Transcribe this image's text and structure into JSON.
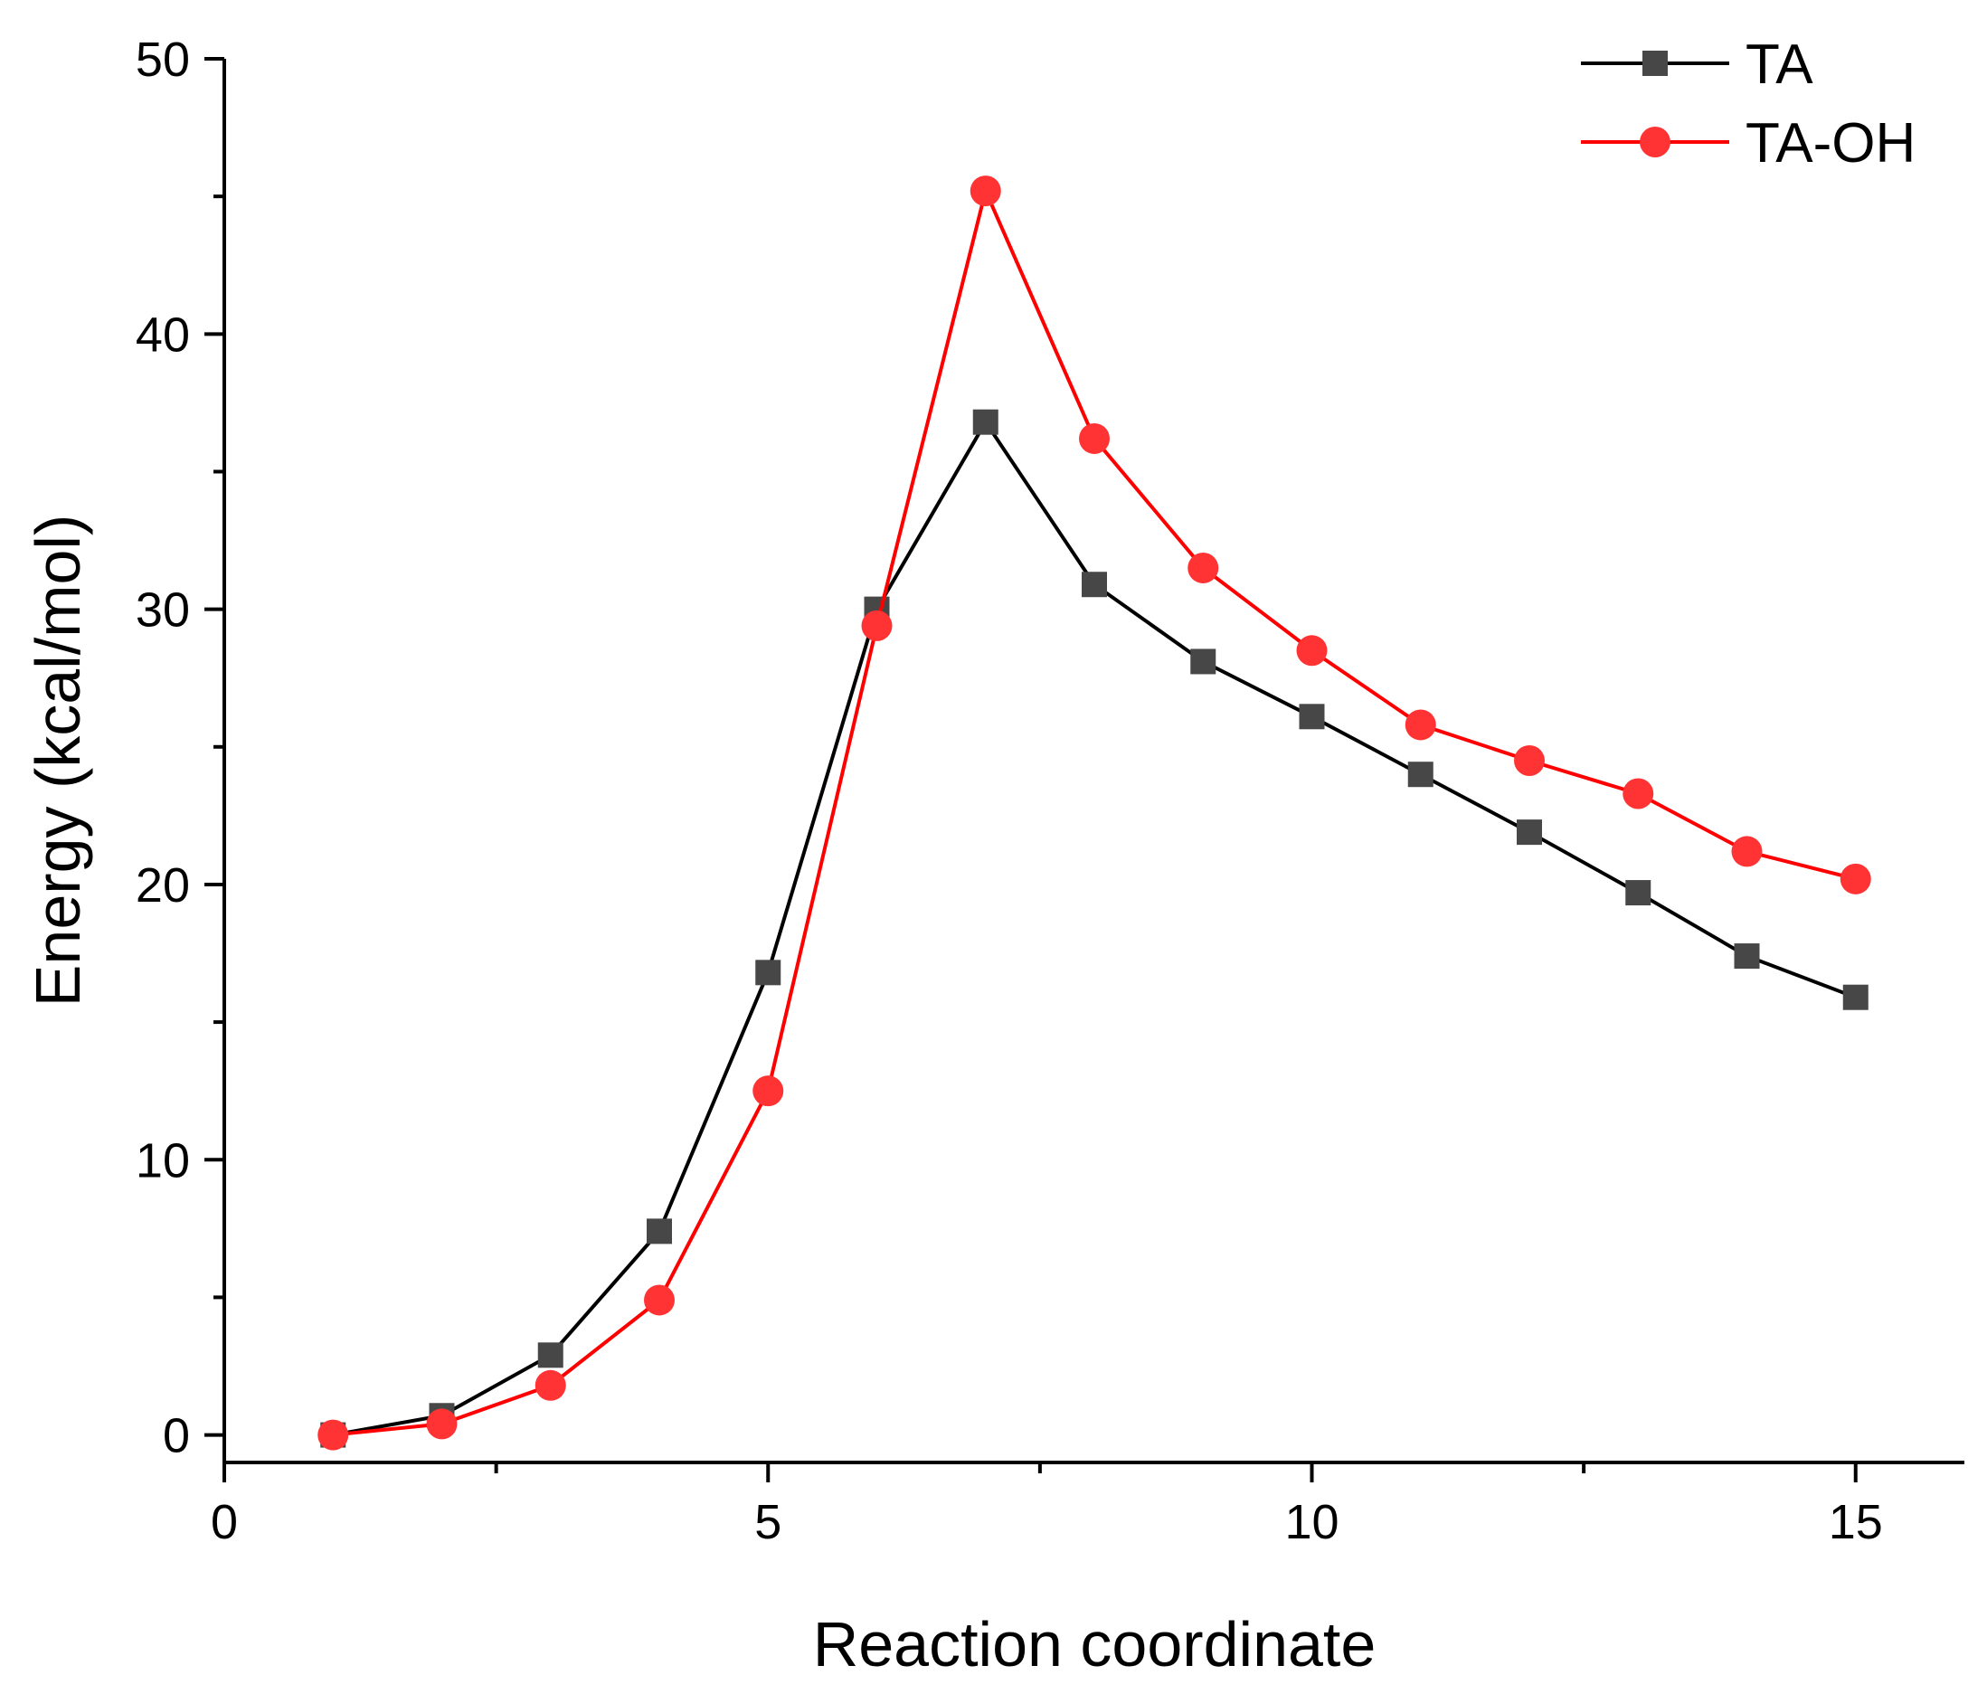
{
  "chart_data": {
    "type": "line",
    "title": "",
    "xlabel": "Reaction coordinate",
    "ylabel": "Energy (kcal/mol)",
    "xlim": [
      0,
      16
    ],
    "ylim": [
      -1,
      50
    ],
    "x_ticks": [
      0,
      5,
      10,
      15
    ],
    "x_minor_ticks": [
      2.5,
      7.5,
      12.5
    ],
    "y_ticks": [
      0,
      10,
      20,
      30,
      40,
      50
    ],
    "y_minor_ticks": [
      5,
      15,
      25,
      35,
      45
    ],
    "grid": false,
    "legend_position": "top-right",
    "x": [
      1,
      2,
      3,
      4,
      5,
      6,
      7,
      8,
      9,
      10,
      11,
      12,
      13,
      14,
      15
    ],
    "series": [
      {
        "name": "TA",
        "color": "#000000",
        "marker": "square",
        "marker_color": "#474747",
        "values": [
          0.0,
          0.7,
          2.9,
          7.4,
          16.8,
          30.0,
          36.8,
          30.9,
          28.1,
          26.1,
          24.0,
          21.9,
          19.7,
          17.4,
          15.9
        ]
      },
      {
        "name": "TA-OH",
        "color": "#ff0000",
        "marker": "circle",
        "marker_color": "#ff3333",
        "values": [
          0.0,
          0.4,
          1.8,
          4.9,
          12.5,
          29.4,
          45.2,
          36.2,
          31.5,
          28.5,
          25.8,
          24.5,
          23.3,
          21.2,
          20.2
        ]
      }
    ]
  }
}
